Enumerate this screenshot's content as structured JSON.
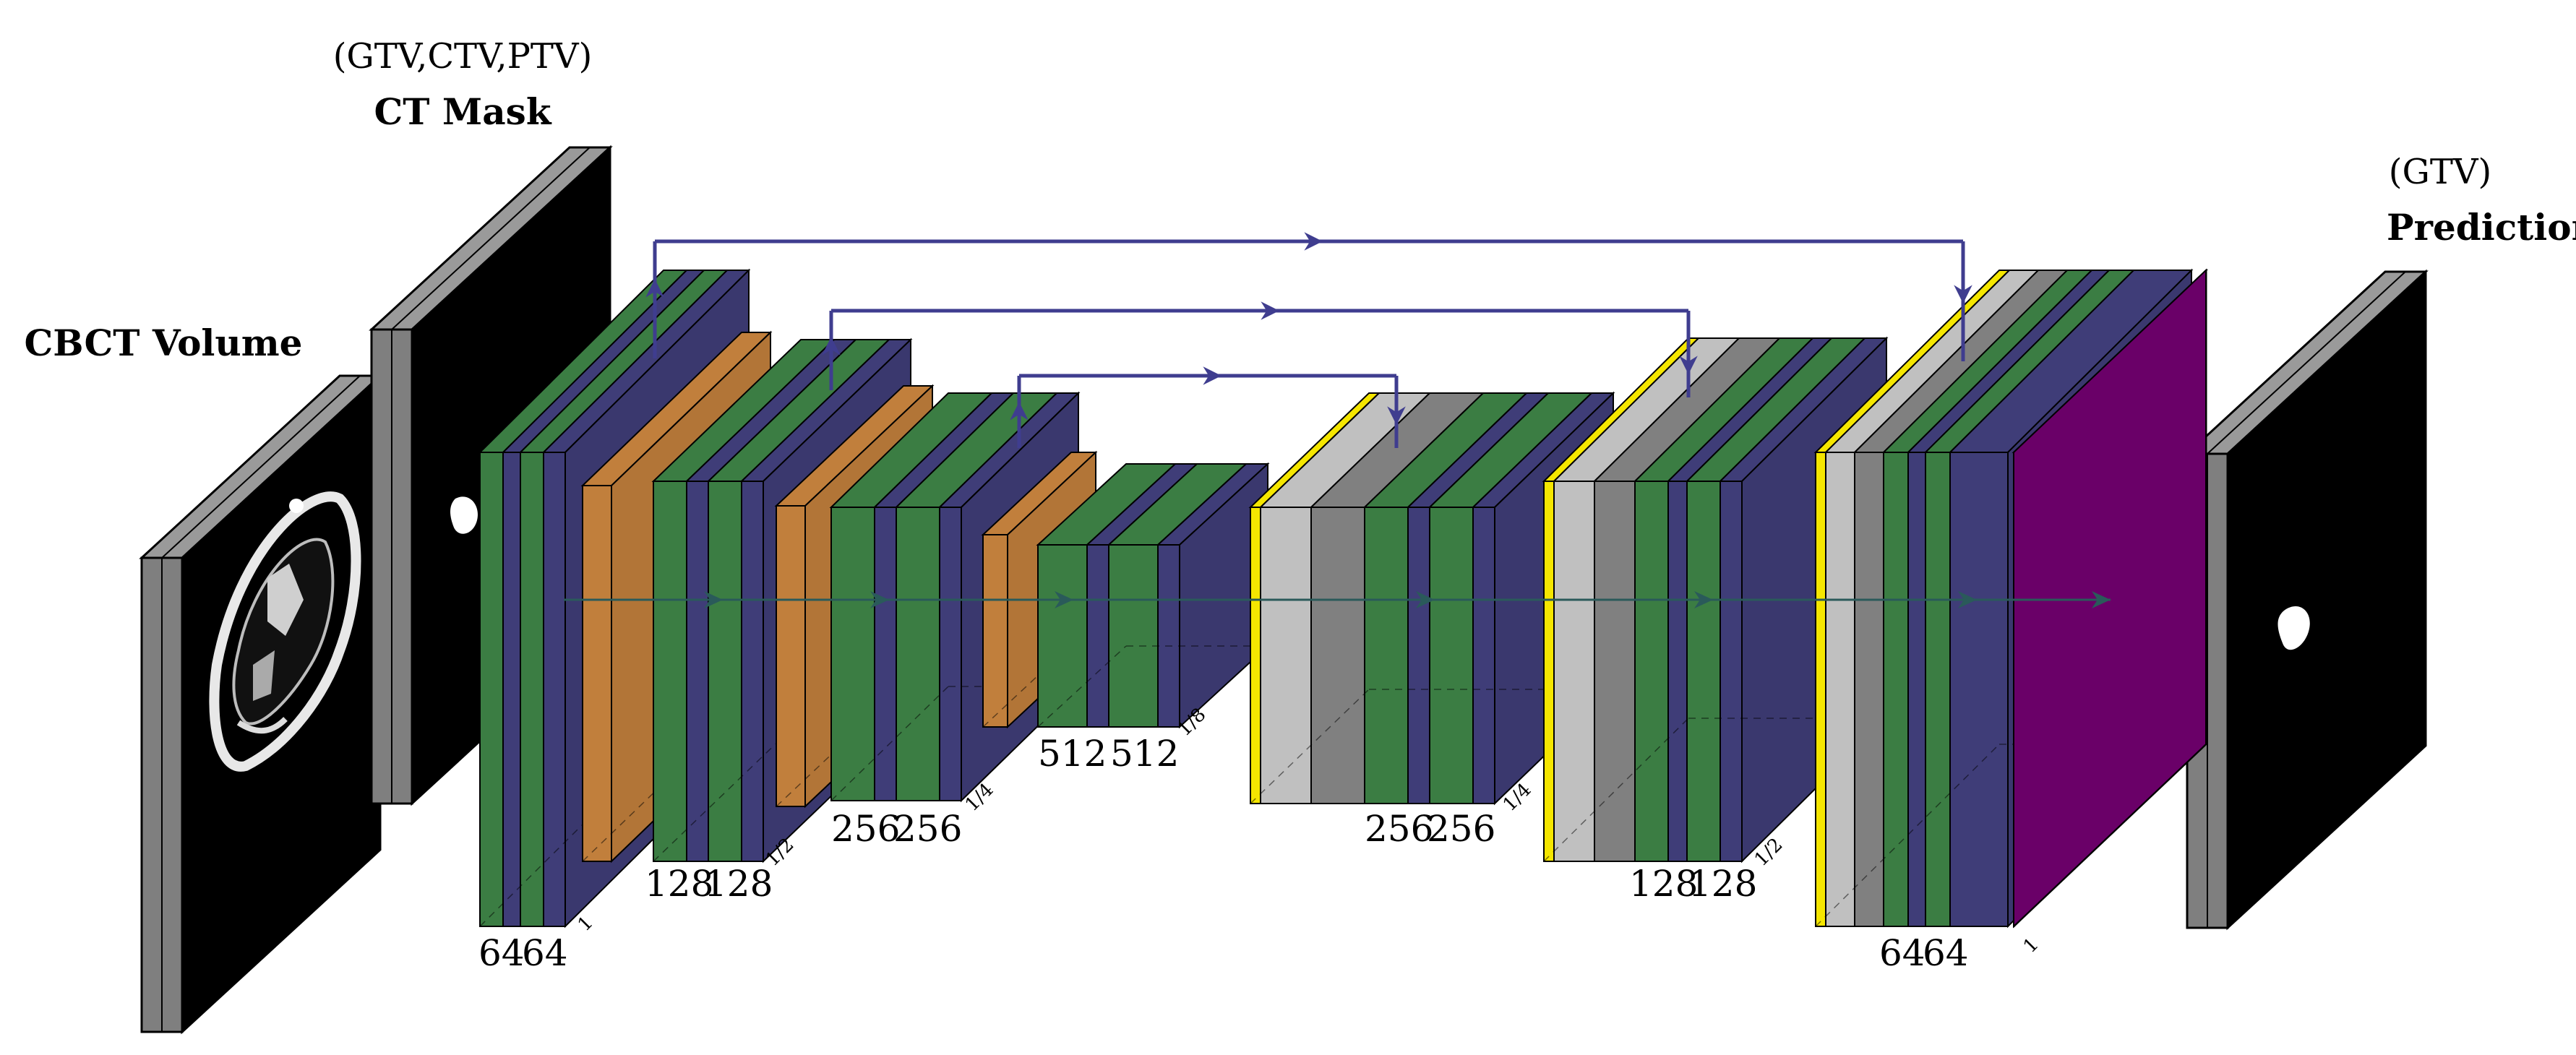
{
  "labels": {
    "input_title": "CBCT Volume",
    "mask_paren": "(GTV,CTV,PTV)",
    "mask_title": "CT Mask",
    "pred_paren": "(GTV)",
    "pred_title": "Prediction"
  },
  "encoder": [
    {
      "channels": [
        "64",
        "64"
      ],
      "scale": "1"
    },
    {
      "channels": [
        "128",
        "128"
      ],
      "scale": "1/2"
    },
    {
      "channels": [
        "256",
        "256"
      ],
      "scale": "1/4"
    },
    {
      "channels": [
        "512",
        "512"
      ],
      "scale": "1/8"
    }
  ],
  "decoder": [
    {
      "channels": [
        "256",
        "256"
      ],
      "scale": "1/4"
    },
    {
      "channels": [
        "128",
        "128"
      ],
      "scale": "1/2"
    },
    {
      "channels": [
        "64",
        "64"
      ],
      "scale": "1"
    }
  ],
  "output_scale": "1",
  "colors": {
    "conv": "#3b7d43",
    "relu": "#3f3d78",
    "pool": "#c17f3c",
    "unpool": "#f5e600",
    "concat_light": "#c0c0c0",
    "concat_dark": "#808080",
    "softmax": "#6a0068",
    "arrow": "#3f3d8f",
    "image_frame": "#7f7f7f",
    "image_bg": "#000000"
  }
}
